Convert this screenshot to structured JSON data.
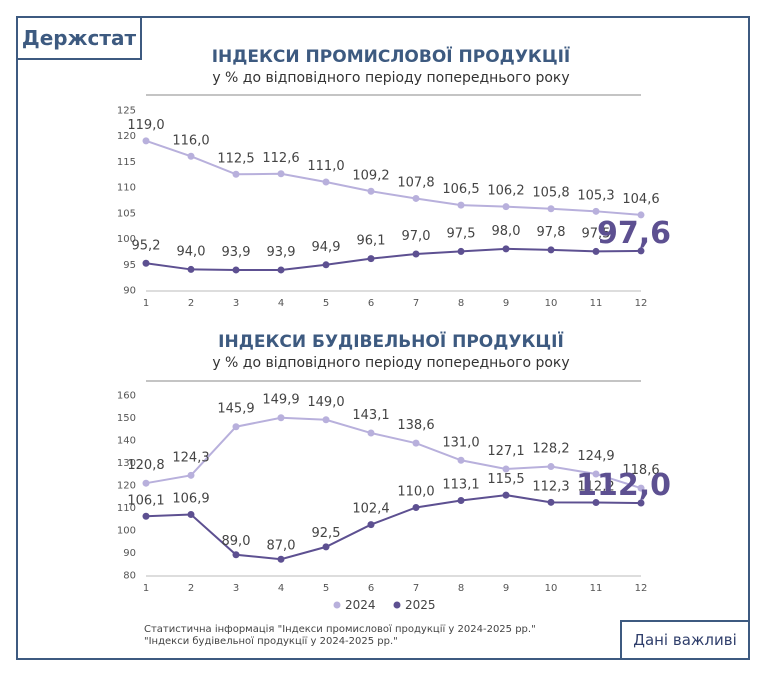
{
  "header": {
    "logo_text": "Держстат"
  },
  "footer": {
    "source_line1": "Статистична інформація \"Індекси промислової продукції у 2024-2025 рр.\"",
    "source_line2": "\"Індекси будівельної продукції у 2024-2025 рр.\"",
    "badge_label": "Дані важливі"
  },
  "legend": {
    "items": [
      {
        "label": "2024",
        "color": "#b8b0dc"
      },
      {
        "label": "2025",
        "color": "#5d5091"
      }
    ]
  },
  "colors": {
    "accent": "#3d5a80",
    "series_2024": "#b8b0dc",
    "series_2025": "#5d5091"
  },
  "chart_data": [
    {
      "type": "line",
      "title": "ІНДЕКСИ ПРОМИСЛОВОЇ ПРОДУКЦІЇ",
      "subtitle": "у % до відповідного періоду попереднього року",
      "x": [
        1,
        2,
        3,
        4,
        5,
        6,
        7,
        8,
        9,
        10,
        11,
        12
      ],
      "ylim": [
        90,
        125
      ],
      "yticks": [
        90,
        95,
        100,
        105,
        110,
        115,
        120,
        125
      ],
      "grid": false,
      "series": [
        {
          "name": "2024",
          "values": [
            119.0,
            116.0,
            112.5,
            112.6,
            111.0,
            109.2,
            107.8,
            106.5,
            106.2,
            105.8,
            105.3,
            104.6
          ],
          "labels": [
            "119,0",
            "116,0",
            "112,5",
            "112,6",
            "111,0",
            "109,2",
            "107,8",
            "106,5",
            "106,2",
            "105,8",
            "105,3",
            "104,6"
          ]
        },
        {
          "name": "2025",
          "values": [
            95.2,
            94.0,
            93.9,
            93.9,
            94.9,
            96.1,
            97.0,
            97.5,
            98.0,
            97.8,
            97.5,
            97.6
          ],
          "labels": [
            "95,2",
            "94,0",
            "93,9",
            "93,9",
            "94,9",
            "96,1",
            "97,0",
            "97,5",
            "98,0",
            "97,8",
            "97,5",
            "97,6"
          ]
        }
      ]
    },
    {
      "type": "line",
      "title": "ІНДЕКСИ БУДІВЕЛЬНОЇ ПРОДУКЦІЇ",
      "subtitle": "у % до відповідного періоду попереднього року",
      "x": [
        1,
        2,
        3,
        4,
        5,
        6,
        7,
        8,
        9,
        10,
        11,
        12
      ],
      "ylim": [
        80,
        160
      ],
      "yticks": [
        80,
        90,
        100,
        110,
        120,
        130,
        140,
        150,
        160
      ],
      "grid": false,
      "series": [
        {
          "name": "2024",
          "values": [
            120.8,
            124.3,
            145.9,
            149.9,
            149.0,
            143.1,
            138.6,
            131.0,
            127.1,
            128.2,
            124.9,
            118.6
          ],
          "labels": [
            "120,8",
            "124,3",
            "145,9",
            "149,9",
            "149,0",
            "143,1",
            "138,6",
            "131,0",
            "127,1",
            "128,2",
            "124,9",
            "118,6"
          ]
        },
        {
          "name": "2025",
          "values": [
            106.1,
            106.9,
            89.0,
            87.0,
            92.5,
            102.4,
            110.0,
            113.1,
            115.5,
            112.3,
            112.2,
            112.0
          ],
          "labels": [
            "106,1",
            "106,9",
            "89,0",
            "87,0",
            "92,5",
            "102,4",
            "110,0",
            "113,1",
            "115,5",
            "112,3",
            "112,2",
            "112,0"
          ]
        }
      ]
    }
  ]
}
